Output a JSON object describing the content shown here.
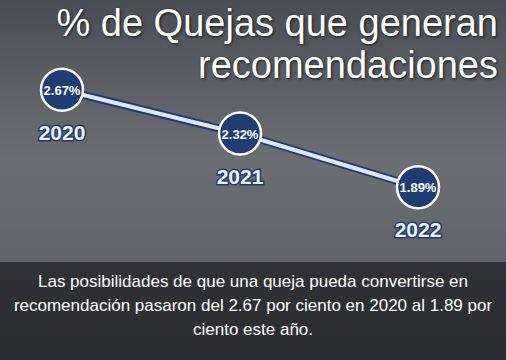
{
  "chart_data": {
    "type": "line",
    "title": "% de Quejas que generan recomendaciones",
    "categories": [
      "2020",
      "2021",
      "2022"
    ],
    "values": [
      2.67,
      2.32,
      1.89
    ],
    "value_labels": [
      "2.67%",
      "2.32%",
      "1.89%"
    ],
    "data_labels": true,
    "color": "#1f3d73",
    "marker": "circle",
    "ylim": [
      1.5,
      2.9
    ],
    "tick_labels": false,
    "grid": false,
    "annotation": "Las posibilidades de que una queja pueda convertirse en recomendación pasaron del 2.67 por ciento en 2020 al 1.89 por ciento este año."
  }
}
